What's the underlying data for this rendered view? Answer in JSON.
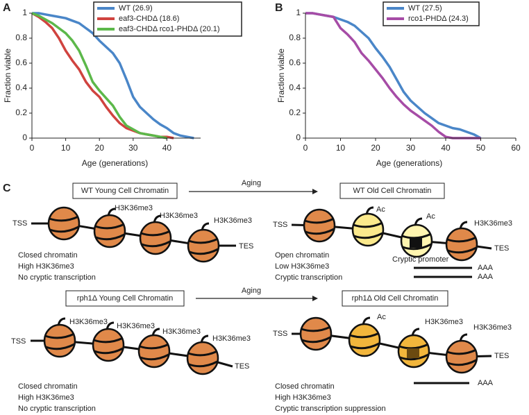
{
  "chart_data": [
    {
      "type": "line",
      "panel_label": "A",
      "ylabel": "Fraction viable",
      "xlabel": "Age (generations)",
      "xlim": [
        0,
        50
      ],
      "ylim": [
        0,
        1
      ],
      "xticks": [
        0,
        10,
        20,
        30,
        40
      ],
      "yticks": [
        0,
        0.2,
        0.4,
        0.6,
        0.8,
        1
      ],
      "x": [
        0,
        2,
        4,
        6,
        8,
        10,
        12,
        14,
        16,
        18,
        20,
        22,
        24,
        26,
        28,
        30,
        32,
        34,
        36,
        38,
        40,
        42,
        44,
        46,
        48
      ],
      "series": [
        {
          "name": "WT (26.9)",
          "color": "#4a86c8",
          "values": [
            1,
            1,
            0.99,
            0.98,
            0.97,
            0.96,
            0.94,
            0.92,
            0.88,
            0.84,
            0.78,
            0.73,
            0.68,
            0.6,
            0.47,
            0.33,
            0.25,
            0.2,
            0.15,
            0.11,
            0.08,
            0.04,
            0.02,
            0.01,
            0
          ]
        },
        {
          "name": "eaf3-CHDΔ (18.6)",
          "color": "#d0433f",
          "values": [
            1,
            0.97,
            0.93,
            0.88,
            0.8,
            0.7,
            0.62,
            0.55,
            0.45,
            0.38,
            0.33,
            0.25,
            0.18,
            0.12,
            0.08,
            0.06,
            0.04,
            0.03,
            0.02,
            0.01,
            0.01,
            0,
            null,
            null,
            null
          ]
        },
        {
          "name": "eaf3-CHDΔ rco1-PHDΔ (20.1)",
          "color": "#5cb84a",
          "values": [
            1,
            0.98,
            0.95,
            0.92,
            0.88,
            0.84,
            0.78,
            0.7,
            0.58,
            0.45,
            0.38,
            0.32,
            0.26,
            0.17,
            0.1,
            0.07,
            0.04,
            0.03,
            0.02,
            0.01,
            0,
            null,
            null,
            null,
            null
          ]
        }
      ]
    },
    {
      "type": "line",
      "panel_label": "B",
      "ylabel": "Fraction viable",
      "xlabel": "Age (generations)",
      "xlim": [
        0,
        60
      ],
      "ylim": [
        0,
        1
      ],
      "xticks": [
        0,
        10,
        20,
        30,
        40,
        50,
        60
      ],
      "yticks": [
        0,
        0.2,
        0.4,
        0.6,
        0.8,
        1
      ],
      "x": [
        0,
        2,
        4,
        6,
        8,
        10,
        12,
        14,
        16,
        18,
        20,
        22,
        24,
        26,
        28,
        30,
        32,
        34,
        36,
        38,
        40,
        42,
        44,
        46,
        48,
        50
      ],
      "series": [
        {
          "name": "WT (27.5)",
          "color": "#4a86c8",
          "values": [
            1,
            1,
            0.99,
            0.98,
            0.97,
            0.95,
            0.93,
            0.9,
            0.85,
            0.8,
            0.72,
            0.65,
            0.57,
            0.47,
            0.37,
            0.3,
            0.25,
            0.2,
            0.16,
            0.12,
            0.1,
            0.08,
            0.07,
            0.05,
            0.03,
            0
          ]
        },
        {
          "name": "rco1-PHDΔ (24.3)",
          "color": "#a64ca6",
          "values": [
            1,
            1,
            0.99,
            0.98,
            0.97,
            0.88,
            0.83,
            0.77,
            0.68,
            0.62,
            0.55,
            0.48,
            0.4,
            0.33,
            0.27,
            0.22,
            0.18,
            0.14,
            0.1,
            0.05,
            0.01,
            0,
            0,
            0,
            0,
            0
          ]
        }
      ]
    }
  ],
  "diagram": {
    "panel_label": "C",
    "top": {
      "aging": "Aging",
      "young": {
        "title": "WT Young Cell Chromatin",
        "tss": "TSS",
        "tes": "TES",
        "marks": [
          "H3K36me3",
          "H3K36me3",
          "H3K36me3"
        ],
        "description": [
          "Closed chromatin",
          "High H3K36me3",
          "No cryptic transcription"
        ]
      },
      "old": {
        "title": "WT Old Cell Chromatin",
        "tss": "TSS",
        "tes": "TES",
        "marks": [
          "Ac",
          "Ac",
          "H3K36me3"
        ],
        "promoter": "Cryptic promoter",
        "transcripts": [
          "AAA",
          "AAA"
        ],
        "description": [
          "Open chromatin",
          "Low H3K36me3",
          "Cryptic transcription"
        ]
      }
    },
    "bottom": {
      "aging": "Aging",
      "young": {
        "title": "rph1Δ Young Cell Chromatin",
        "tss": "TSS",
        "tes": "TES",
        "marks": [
          "H3K36me3",
          "H3K36me3",
          "H3K36me3",
          "H3K36me3"
        ],
        "description": [
          "Closed chromatin",
          "High H3K36me3",
          "No cryptic transcription"
        ]
      },
      "old": {
        "title": "rph1Δ Old Cell Chromatin",
        "tss": "TSS",
        "tes": "TES",
        "marks": [
          "Ac",
          "H3K36me3",
          "H3K36me3"
        ],
        "transcripts": [
          "AAA"
        ],
        "description": [
          "Closed chromatin",
          "High H3K36me3",
          "Cryptic transcription suppression"
        ]
      }
    }
  }
}
